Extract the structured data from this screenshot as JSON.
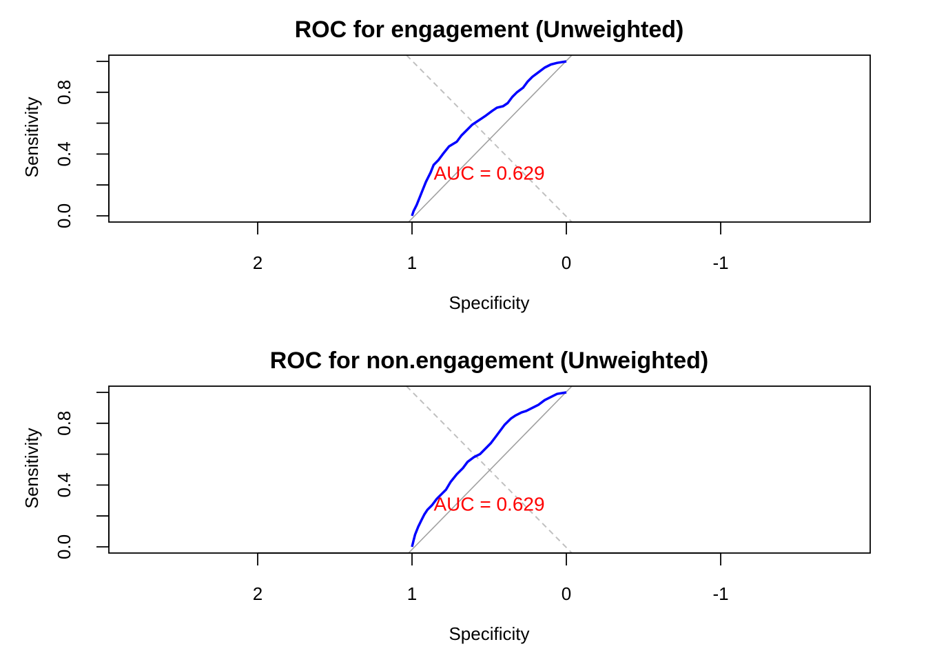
{
  "chart_data": [
    {
      "type": "line",
      "title": "ROC for engagement (Unweighted)",
      "xlabel": "Specificity",
      "ylabel": "Sensitivity",
      "x_reversed": true,
      "xlim": [
        2.98,
        -1.95
      ],
      "ylim": [
        0,
        1
      ],
      "x_ticks": [
        2,
        1,
        0,
        -1
      ],
      "x_tick_labels": [
        "2",
        "1",
        "0",
        "-1"
      ],
      "y_ticks": [
        0,
        0.2,
        0.4,
        0.6,
        0.8,
        1.0
      ],
      "y_tick_labels": [
        "0.0",
        "",
        "0.4",
        "",
        "0.8",
        ""
      ],
      "annotation": "AUC = 0.629",
      "colors": {
        "roc": "#0000ff",
        "auc": "#ff0000",
        "diagonal": "#a0a0a0",
        "crossline": "#c0c0c0"
      },
      "series": [
        {
          "specificity": [
            1.0,
            0.99,
            0.97,
            0.95,
            0.93,
            0.91,
            0.88,
            0.86,
            0.83,
            0.8,
            0.76,
            0.71,
            0.68,
            0.64,
            0.61,
            0.58,
            0.55,
            0.52,
            0.48,
            0.45,
            0.41,
            0.38,
            0.35,
            0.32,
            0.28,
            0.25,
            0.22,
            0.18,
            0.14,
            0.1,
            0.06,
            0.0
          ],
          "sensitivity": [
            0.0,
            0.03,
            0.07,
            0.12,
            0.17,
            0.22,
            0.28,
            0.33,
            0.36,
            0.4,
            0.45,
            0.48,
            0.52,
            0.56,
            0.59,
            0.61,
            0.63,
            0.65,
            0.68,
            0.7,
            0.71,
            0.73,
            0.77,
            0.8,
            0.83,
            0.87,
            0.9,
            0.93,
            0.96,
            0.98,
            0.99,
            1.0
          ]
        }
      ]
    },
    {
      "type": "line",
      "title": "ROC for non.engagement (Unweighted)",
      "xlabel": "Specificity",
      "ylabel": "Sensitivity",
      "x_reversed": true,
      "xlim": [
        2.98,
        -1.95
      ],
      "ylim": [
        0,
        1
      ],
      "x_ticks": [
        2,
        1,
        0,
        -1
      ],
      "x_tick_labels": [
        "2",
        "1",
        "0",
        "-1"
      ],
      "y_ticks": [
        0,
        0.2,
        0.4,
        0.6,
        0.8,
        1.0
      ],
      "y_tick_labels": [
        "0.0",
        "",
        "0.4",
        "",
        "0.8",
        ""
      ],
      "annotation": "AUC = 0.629",
      "colors": {
        "roc": "#0000ff",
        "auc": "#ff0000",
        "diagonal": "#a0a0a0",
        "crossline": "#c0c0c0"
      },
      "series": [
        {
          "specificity": [
            1.0,
            0.99,
            0.98,
            0.96,
            0.94,
            0.92,
            0.9,
            0.87,
            0.84,
            0.81,
            0.78,
            0.75,
            0.71,
            0.67,
            0.64,
            0.6,
            0.56,
            0.53,
            0.49,
            0.46,
            0.43,
            0.4,
            0.36,
            0.33,
            0.29,
            0.26,
            0.22,
            0.18,
            0.14,
            0.1,
            0.06,
            0.0
          ],
          "sensitivity": [
            0.0,
            0.04,
            0.08,
            0.13,
            0.17,
            0.21,
            0.24,
            0.27,
            0.31,
            0.34,
            0.37,
            0.42,
            0.47,
            0.51,
            0.55,
            0.58,
            0.6,
            0.63,
            0.67,
            0.71,
            0.75,
            0.79,
            0.83,
            0.85,
            0.87,
            0.88,
            0.9,
            0.92,
            0.95,
            0.97,
            0.99,
            1.0
          ]
        }
      ]
    }
  ]
}
